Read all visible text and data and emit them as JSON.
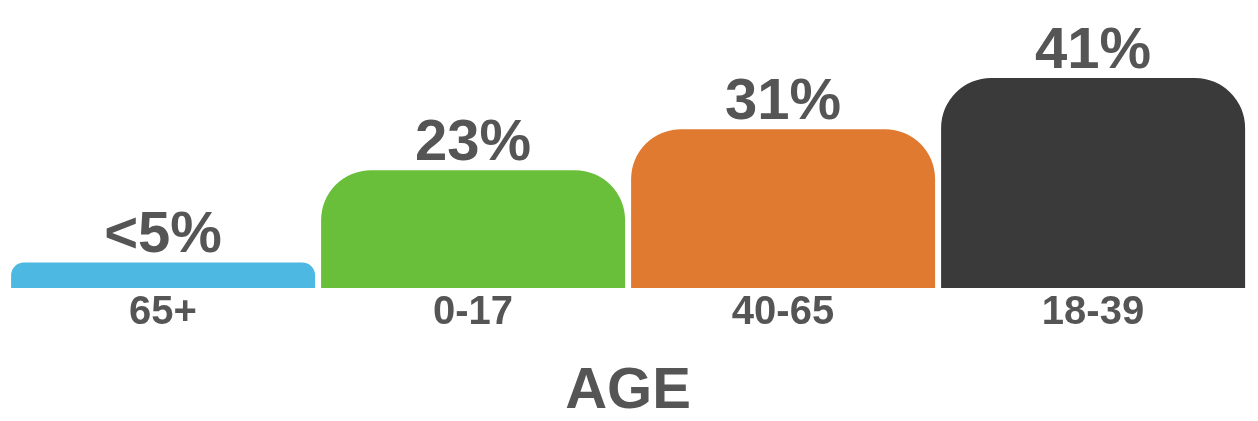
{
  "chart_data": {
    "type": "bar",
    "xlabel": "AGE",
    "categories": [
      "65+",
      "0-17",
      "40-65",
      "18-39"
    ],
    "values": [
      5,
      23,
      31,
      41
    ],
    "value_labels": [
      "<5%",
      "23%",
      "31%",
      "41%"
    ],
    "colors": [
      "#4db8e2",
      "#6abf3a",
      "#df7a30",
      "#393a39"
    ]
  }
}
